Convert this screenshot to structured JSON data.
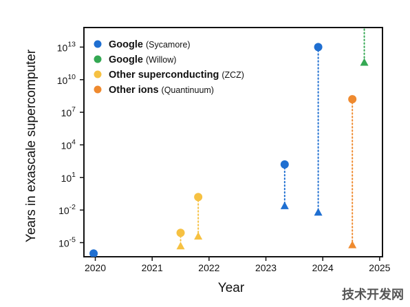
{
  "chart_data": {
    "type": "scatter",
    "title": "",
    "xlabel": "Year",
    "ylabel": "Years in exascale supercomputer",
    "y_scale": "log",
    "xlim": [
      2019.8,
      2025.05
    ],
    "ylim_exponent": [
      -6.3,
      14.8
    ],
    "x_ticks": [
      2020,
      2021,
      2022,
      2023,
      2024,
      2025
    ],
    "y_ticks": [
      {
        "base": "10",
        "exp": "13",
        "value_exp": 13
      },
      {
        "base": "10",
        "exp": "10",
        "value_exp": 10
      },
      {
        "base": "10",
        "exp": "7",
        "value_exp": 7
      },
      {
        "base": "10",
        "exp": "4",
        "value_exp": 4
      },
      {
        "base": "10",
        "exp": "1",
        "value_exp": 1
      },
      {
        "base": "10",
        "exp": "-2",
        "value_exp": -2
      },
      {
        "base": "10",
        "exp": "-5",
        "value_exp": -5
      }
    ],
    "grid": false,
    "legend_position": "top-left",
    "series": [
      {
        "name": "Google",
        "detail": "(Sycamore)",
        "color": "#1f6fd1",
        "points": [
          {
            "x": 2019.97,
            "circle_exp": -6.0,
            "triangle_exp": null
          },
          {
            "x": 2023.33,
            "circle_exp": 2.2,
            "triangle_exp": -1.6
          },
          {
            "x": 2023.92,
            "circle_exp": 13.0,
            "triangle_exp": -2.2
          }
        ]
      },
      {
        "name": "Google",
        "detail": "(Willow)",
        "color": "#34a853",
        "points": [
          {
            "x": 2024.73,
            "circle_exp": 15.6,
            "triangle_exp": 11.6
          }
        ]
      },
      {
        "name": "Other superconducting",
        "detail": "(ZCZ)",
        "color": "#f6c142",
        "points": [
          {
            "x": 2021.5,
            "circle_exp": -4.1,
            "triangle_exp": -5.3
          },
          {
            "x": 2021.81,
            "circle_exp": -0.8,
            "triangle_exp": -4.4
          }
        ]
      },
      {
        "name": "Other ions",
        "detail": "(Quantinuum)",
        "color": "#ef8a2f",
        "points": [
          {
            "x": 2024.52,
            "circle_exp": 8.2,
            "triangle_exp": -5.2
          }
        ]
      }
    ]
  },
  "watermark": {
    "text": "技术开发网"
  }
}
